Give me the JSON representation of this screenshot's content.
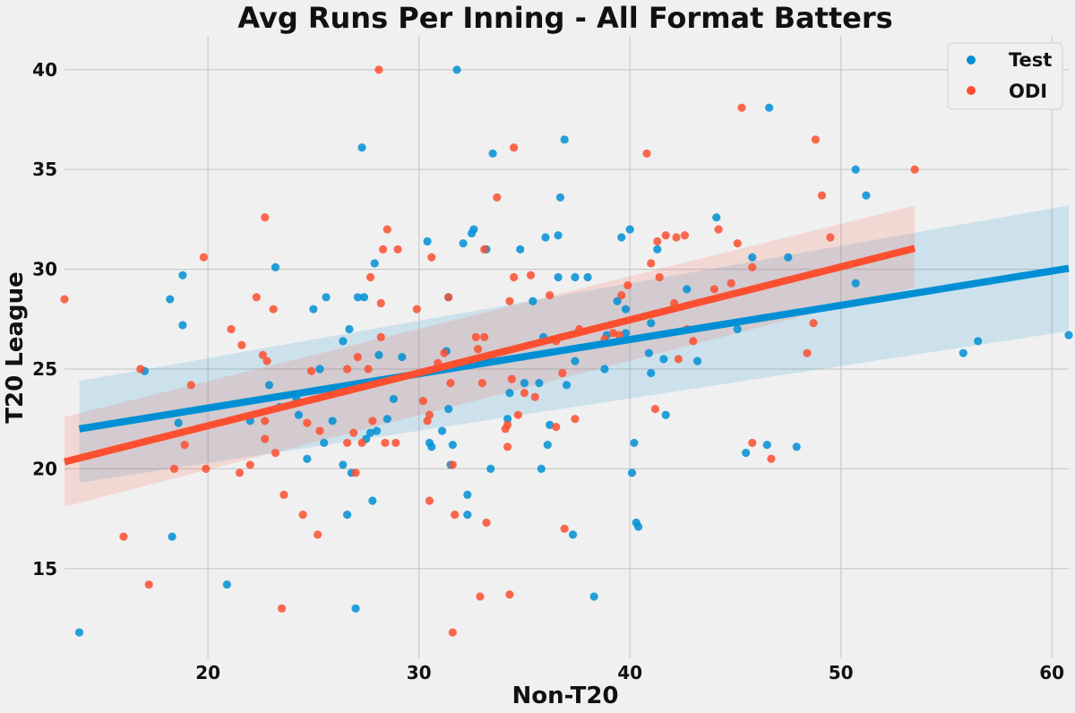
{
  "chart_data": {
    "type": "scatter",
    "title": "Avg Runs Per Inning - All Format Batters",
    "xlabel": "Non-T20",
    "ylabel": "T20 League",
    "xlim": [
      13.2,
      60.8
    ],
    "ylim": [
      10.5,
      41.7
    ],
    "x_ticks": [
      20,
      30,
      40,
      50,
      60
    ],
    "y_ticks": [
      15,
      20,
      25,
      30,
      35,
      40
    ],
    "grid": true,
    "legend_position": "top-right",
    "series": [
      {
        "name": "Test",
        "color": "#008fd5",
        "points": [
          [
            13.9,
            11.8
          ],
          [
            17.0,
            24.9
          ],
          [
            18.2,
            28.5
          ],
          [
            18.3,
            16.6
          ],
          [
            18.6,
            22.3
          ],
          [
            18.8,
            29.7
          ],
          [
            18.8,
            27.2
          ],
          [
            20.9,
            14.2
          ],
          [
            22.0,
            22.4
          ],
          [
            22.9,
            24.2
          ],
          [
            23.2,
            30.1
          ],
          [
            23.4,
            23.1
          ],
          [
            24.2,
            23.5
          ],
          [
            24.3,
            22.7
          ],
          [
            24.7,
            20.5
          ],
          [
            25.0,
            28.0
          ],
          [
            25.3,
            25.0
          ],
          [
            25.5,
            21.3
          ],
          [
            25.6,
            28.6
          ],
          [
            25.9,
            22.4
          ],
          [
            26.4,
            26.4
          ],
          [
            26.4,
            20.2
          ],
          [
            26.6,
            17.7
          ],
          [
            26.7,
            27.0
          ],
          [
            26.8,
            19.8
          ],
          [
            27.0,
            13.0
          ],
          [
            27.1,
            28.6
          ],
          [
            27.3,
            36.1
          ],
          [
            27.4,
            28.6
          ],
          [
            27.5,
            21.5
          ],
          [
            27.7,
            21.8
          ],
          [
            27.8,
            18.4
          ],
          [
            27.9,
            30.3
          ],
          [
            28.0,
            21.9
          ],
          [
            28.1,
            25.7
          ],
          [
            28.5,
            22.5
          ],
          [
            28.8,
            23.5
          ],
          [
            29.2,
            25.6
          ],
          [
            30.4,
            31.4
          ],
          [
            30.5,
            21.3
          ],
          [
            30.6,
            21.1
          ],
          [
            31.1,
            21.9
          ],
          [
            31.3,
            25.9
          ],
          [
            31.4,
            28.6
          ],
          [
            31.4,
            23.0
          ],
          [
            31.5,
            20.2
          ],
          [
            31.6,
            21.2
          ],
          [
            31.8,
            40.0
          ],
          [
            32.1,
            31.3
          ],
          [
            32.3,
            18.7
          ],
          [
            32.3,
            17.7
          ],
          [
            32.5,
            31.8
          ],
          [
            32.6,
            32.0
          ],
          [
            33.2,
            31.0
          ],
          [
            33.4,
            20.0
          ],
          [
            33.5,
            35.8
          ],
          [
            34.2,
            22.5
          ],
          [
            34.3,
            23.8
          ],
          [
            34.8,
            31.0
          ],
          [
            35.0,
            24.3
          ],
          [
            35.4,
            28.4
          ],
          [
            35.7,
            24.3
          ],
          [
            35.8,
            20.0
          ],
          [
            35.9,
            26.6
          ],
          [
            36.0,
            31.6
          ],
          [
            36.1,
            21.2
          ],
          [
            36.2,
            22.2
          ],
          [
            36.6,
            31.7
          ],
          [
            36.6,
            29.6
          ],
          [
            36.7,
            33.6
          ],
          [
            36.9,
            36.5
          ],
          [
            37.0,
            24.2
          ],
          [
            37.3,
            16.7
          ],
          [
            37.4,
            29.6
          ],
          [
            37.4,
            25.4
          ],
          [
            38.0,
            29.6
          ],
          [
            38.3,
            13.6
          ],
          [
            38.8,
            25.0
          ],
          [
            38.9,
            26.7
          ],
          [
            39.4,
            28.4
          ],
          [
            39.6,
            31.6
          ],
          [
            39.8,
            26.8
          ],
          [
            39.8,
            28.0
          ],
          [
            40.0,
            32.0
          ],
          [
            40.1,
            19.8
          ],
          [
            40.2,
            21.3
          ],
          [
            40.3,
            17.3
          ],
          [
            40.4,
            17.1
          ],
          [
            40.9,
            25.8
          ],
          [
            41.0,
            24.8
          ],
          [
            41.0,
            27.3
          ],
          [
            41.3,
            31.0
          ],
          [
            41.6,
            25.5
          ],
          [
            41.7,
            22.7
          ],
          [
            42.7,
            29.0
          ],
          [
            43.2,
            25.4
          ],
          [
            44.1,
            32.6
          ],
          [
            45.1,
            27.0
          ],
          [
            45.5,
            20.8
          ],
          [
            45.8,
            30.6
          ],
          [
            46.5,
            21.2
          ],
          [
            46.6,
            38.1
          ],
          [
            47.5,
            30.6
          ],
          [
            47.9,
            21.1
          ],
          [
            50.7,
            35.0
          ],
          [
            50.7,
            29.3
          ],
          [
            51.2,
            33.7
          ],
          [
            55.8,
            25.8
          ],
          [
            56.5,
            26.4
          ],
          [
            60.8,
            26.7
          ]
        ]
      },
      {
        "name": "ODI",
        "color": "#fc4f30",
        "points": [
          [
            13.2,
            28.5
          ],
          [
            16.0,
            16.6
          ],
          [
            16.8,
            25.0
          ],
          [
            17.2,
            14.2
          ],
          [
            18.4,
            20.0
          ],
          [
            18.9,
            21.2
          ],
          [
            19.2,
            24.2
          ],
          [
            19.8,
            30.6
          ],
          [
            19.9,
            20.0
          ],
          [
            21.1,
            27.0
          ],
          [
            21.5,
            19.8
          ],
          [
            21.6,
            26.2
          ],
          [
            22.0,
            20.2
          ],
          [
            22.3,
            28.6
          ],
          [
            22.6,
            25.7
          ],
          [
            22.7,
            32.6
          ],
          [
            22.7,
            22.4
          ],
          [
            22.7,
            21.5
          ],
          [
            22.8,
            25.4
          ],
          [
            23.1,
            28.0
          ],
          [
            23.2,
            20.8
          ],
          [
            23.5,
            13.0
          ],
          [
            23.6,
            18.7
          ],
          [
            24.5,
            17.7
          ],
          [
            24.7,
            22.3
          ],
          [
            24.9,
            24.9
          ],
          [
            25.2,
            16.7
          ],
          [
            25.3,
            21.9
          ],
          [
            26.6,
            25.0
          ],
          [
            26.6,
            21.3
          ],
          [
            26.9,
            21.8
          ],
          [
            27.0,
            19.8
          ],
          [
            27.1,
            25.6
          ],
          [
            27.3,
            21.3
          ],
          [
            27.6,
            25.0
          ],
          [
            27.7,
            29.6
          ],
          [
            27.8,
            22.4
          ],
          [
            28.1,
            40.0
          ],
          [
            28.2,
            28.3
          ],
          [
            28.2,
            26.6
          ],
          [
            28.3,
            31.0
          ],
          [
            28.4,
            21.3
          ],
          [
            28.5,
            32.0
          ],
          [
            28.9,
            21.3
          ],
          [
            29.0,
            31.0
          ],
          [
            29.9,
            28.0
          ],
          [
            30.2,
            23.4
          ],
          [
            30.4,
            22.4
          ],
          [
            30.5,
            18.4
          ],
          [
            30.5,
            22.7
          ],
          [
            30.6,
            30.6
          ],
          [
            30.9,
            25.3
          ],
          [
            31.2,
            25.8
          ],
          [
            31.4,
            28.6
          ],
          [
            31.5,
            24.3
          ],
          [
            31.6,
            20.2
          ],
          [
            31.6,
            11.8
          ],
          [
            31.7,
            17.7
          ],
          [
            32.7,
            26.6
          ],
          [
            32.8,
            26.0
          ],
          [
            32.9,
            13.6
          ],
          [
            33.0,
            24.3
          ],
          [
            33.1,
            26.6
          ],
          [
            33.1,
            31.0
          ],
          [
            33.2,
            17.3
          ],
          [
            33.7,
            33.6
          ],
          [
            34.1,
            22.0
          ],
          [
            34.2,
            22.2
          ],
          [
            34.2,
            21.1
          ],
          [
            34.3,
            13.7
          ],
          [
            34.3,
            28.4
          ],
          [
            34.4,
            24.5
          ],
          [
            34.5,
            36.1
          ],
          [
            34.5,
            29.6
          ],
          [
            34.7,
            22.7
          ],
          [
            35.0,
            23.8
          ],
          [
            35.3,
            29.7
          ],
          [
            35.5,
            23.6
          ],
          [
            36.2,
            28.7
          ],
          [
            36.5,
            22.1
          ],
          [
            36.5,
            26.4
          ],
          [
            36.8,
            24.8
          ],
          [
            36.9,
            17.0
          ],
          [
            37.4,
            22.5
          ],
          [
            37.6,
            27.0
          ],
          [
            38.8,
            26.5
          ],
          [
            39.2,
            26.8
          ],
          [
            39.5,
            26.7
          ],
          [
            39.6,
            28.7
          ],
          [
            39.9,
            29.2
          ],
          [
            40.8,
            35.8
          ],
          [
            41.0,
            30.3
          ],
          [
            41.2,
            23.0
          ],
          [
            41.3,
            31.4
          ],
          [
            41.4,
            29.6
          ],
          [
            41.7,
            31.7
          ],
          [
            42.1,
            28.3
          ],
          [
            42.2,
            31.6
          ],
          [
            42.3,
            25.5
          ],
          [
            42.6,
            31.7
          ],
          [
            42.7,
            27.0
          ],
          [
            43.0,
            26.4
          ],
          [
            44.0,
            29.0
          ],
          [
            44.2,
            32.0
          ],
          [
            44.8,
            29.3
          ],
          [
            45.1,
            31.3
          ],
          [
            45.3,
            38.1
          ],
          [
            45.8,
            30.1
          ],
          [
            45.8,
            21.3
          ],
          [
            46.7,
            20.5
          ],
          [
            48.4,
            25.8
          ],
          [
            48.7,
            27.3
          ],
          [
            48.8,
            36.5
          ],
          [
            49.1,
            33.7
          ],
          [
            49.5,
            31.6
          ],
          [
            53.5,
            35.0
          ]
        ]
      }
    ],
    "fits": [
      {
        "series": "Test",
        "color": "#008fd5",
        "x_range": [
          13.9,
          60.8
        ],
        "line": [
          22.0,
          30.05
        ],
        "band_lower": [
          19.3,
          26.9
        ],
        "band_upper": [
          24.4,
          33.2
        ]
      },
      {
        "series": "ODI",
        "color": "#fc4f30",
        "x_range": [
          13.2,
          53.5
        ],
        "line": [
          20.35,
          31.05
        ],
        "band_lower": [
          18.1,
          29.1
        ],
        "band_upper": [
          22.6,
          33.2
        ]
      }
    ]
  }
}
